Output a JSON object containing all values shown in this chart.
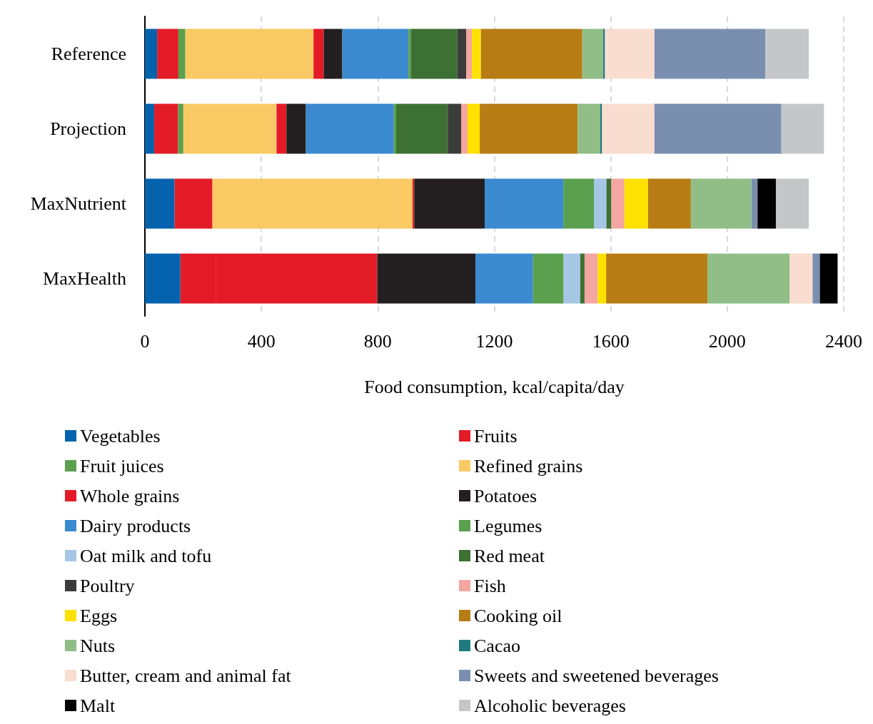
{
  "chart_data": {
    "type": "bar",
    "orientation": "horizontal",
    "stacked": true,
    "categories": [
      "Reference",
      "Projection",
      "MaxNutrient",
      "MaxHealth"
    ],
    "xlabel": "Food consumption, kcal/capita/day",
    "xlim": [
      0,
      2400
    ],
    "xticks": [
      0,
      400,
      800,
      1200,
      1600,
      2000,
      2400
    ],
    "grid": "x",
    "legend": "bottom",
    "series": [
      {
        "name": "Vegetables",
        "color": "#0563ad",
        "values": [
          42,
          32,
          102,
          122
        ]
      },
      {
        "name": "Fruits",
        "color": "#e31b27",
        "values": [
          73,
          82,
          130,
          121
        ]
      },
      {
        "name": "Fruit juices",
        "color": "#5aa04e",
        "values": [
          24,
          18,
          0,
          0
        ]
      },
      {
        "name": "Refined grains",
        "color": "#f9ca64",
        "values": [
          440,
          320,
          687,
          0
        ]
      },
      {
        "name": "Whole grains",
        "color": "#e31b27",
        "values": [
          35,
          34,
          6,
          555
        ]
      },
      {
        "name": "Potatoes",
        "color": "#231f20",
        "values": [
          64,
          67,
          242,
          337
        ]
      },
      {
        "name": "Dairy products",
        "color": "#3b8ad0",
        "values": [
          227,
          302,
          270,
          198
        ]
      },
      {
        "name": "Legumes",
        "color": "#5aa04e",
        "values": [
          8,
          8,
          105,
          105
        ]
      },
      {
        "name": "Oat milk and tofu",
        "color": "#a6c6e5",
        "values": [
          0,
          0,
          43,
          57
        ]
      },
      {
        "name": "Red meat",
        "color": "#3d7033",
        "values": [
          160,
          177,
          17,
          15
        ]
      },
      {
        "name": "Poultry",
        "color": "#3c3c3c",
        "values": [
          31,
          46,
          0,
          0
        ]
      },
      {
        "name": "Fish",
        "color": "#f4a6a0",
        "values": [
          19,
          22,
          45,
          45
        ]
      },
      {
        "name": "Eggs",
        "color": "#ffe100",
        "values": [
          31,
          42,
          81,
          29
        ]
      },
      {
        "name": "Cooking oil",
        "color": "#b77c14",
        "values": [
          348,
          336,
          147,
          348
        ]
      },
      {
        "name": "Nuts",
        "color": "#90be86",
        "values": [
          72,
          78,
          208,
          282
        ]
      },
      {
        "name": "Cacao",
        "color": "#1f7a80",
        "values": [
          6,
          6,
          0,
          0
        ]
      },
      {
        "name": "Butter, cream and animal fat",
        "color": "#f8ddd0",
        "values": [
          170,
          180,
          0,
          79
        ]
      },
      {
        "name": "Sweets and sweetened beverages",
        "color": "#7a8fb0",
        "values": [
          381,
          436,
          21,
          25
        ]
      },
      {
        "name": "Malt",
        "color": "#000000",
        "values": [
          0,
          0,
          63,
          61
        ]
      },
      {
        "name": "Alcoholic beverages",
        "color": "#c5c6c8",
        "values": [
          149,
          146,
          113,
          0
        ]
      }
    ]
  }
}
